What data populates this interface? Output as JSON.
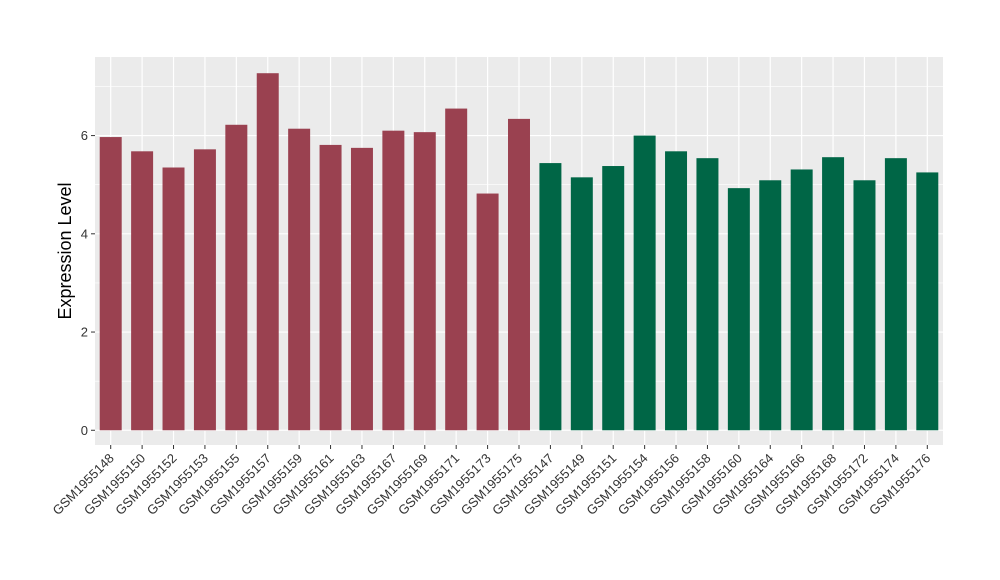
{
  "chart_data": {
    "type": "bar",
    "ylabel": "Expression Level",
    "xlabel": "",
    "ylim": [
      -0.3,
      7.6
    ],
    "yticks": [
      0,
      2,
      4,
      6
    ],
    "grid": true,
    "panel_background": "#ebebeb",
    "categories": [
      "GSM1955148",
      "GSM1955150",
      "GSM1955152",
      "GSM1955153",
      "GSM1955155",
      "GSM1955157",
      "GSM1955159",
      "GSM1955161",
      "GSM1955163",
      "GSM1955167",
      "GSM1955169",
      "GSM1955171",
      "GSM1955173",
      "GSM1955175",
      "GSM1955147",
      "GSM1955149",
      "GSM1955151",
      "GSM1955154",
      "GSM1955156",
      "GSM1955158",
      "GSM1955160",
      "GSM1955164",
      "GSM1955166",
      "GSM1955168",
      "GSM1955172",
      "GSM1955174",
      "GSM1955176"
    ],
    "values": [
      5.97,
      5.68,
      5.35,
      5.72,
      6.22,
      7.27,
      6.14,
      5.81,
      5.75,
      6.1,
      6.07,
      6.55,
      4.82,
      6.34,
      5.44,
      5.15,
      5.38,
      6.0,
      5.68,
      5.54,
      4.93,
      5.09,
      5.31,
      5.56,
      5.09,
      5.54,
      5.25
    ],
    "groups": [
      "a",
      "a",
      "a",
      "a",
      "a",
      "a",
      "a",
      "a",
      "a",
      "a",
      "a",
      "a",
      "a",
      "a",
      "b",
      "b",
      "b",
      "b",
      "b",
      "b",
      "b",
      "b",
      "b",
      "b",
      "b",
      "b",
      "b"
    ],
    "group_colors": {
      "a": "#9a4150",
      "b": "#006646"
    }
  }
}
